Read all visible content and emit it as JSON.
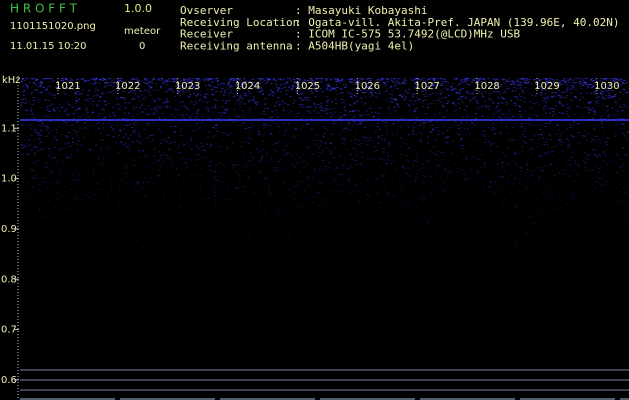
{
  "header": {
    "app": "H R O F F T",
    "version": "1.0.0",
    "file": "1101151020.png",
    "datetime": "11.01.15 10:20",
    "meteor_label": "meteor",
    "meteor_count": "0",
    "info": [
      {
        "label": "Ovserver",
        "value": ": Masayuki Kobayashi"
      },
      {
        "label": "Receiving Location",
        "value": ": Ogata-vill. Akita-Pref. JAPAN (139.96E, 40.02N)"
      },
      {
        "label": "Receiver",
        "value": ": ICOM IC-575 53.7492(@LCD)MHz USB"
      },
      {
        "label": "Receiving antenna",
        "value": ": A504HB(yagi 4el)"
      }
    ]
  },
  "chart_data": {
    "type": "spectrogram",
    "y_unit": "kHz",
    "xlim": [
      1020.2,
      1030.37
    ],
    "xticks": [
      1021,
      1022,
      1023,
      1024,
      1025,
      1026,
      1027,
      1028,
      1029,
      1030
    ],
    "ylim": [
      0.56,
      1.2
    ],
    "yticks": [
      {
        "value": 1.1,
        "label": "1.1"
      },
      {
        "value": 1.0,
        "label": "1.0"
      },
      {
        "value": 0.9,
        "label": "0.9"
      },
      {
        "value": 0.8,
        "label": "0.8"
      },
      {
        "value": 0.7,
        "label": "0.7"
      },
      {
        "value": 0.6,
        "label": "0.6"
      }
    ],
    "color": "#3c3cff"
  }
}
